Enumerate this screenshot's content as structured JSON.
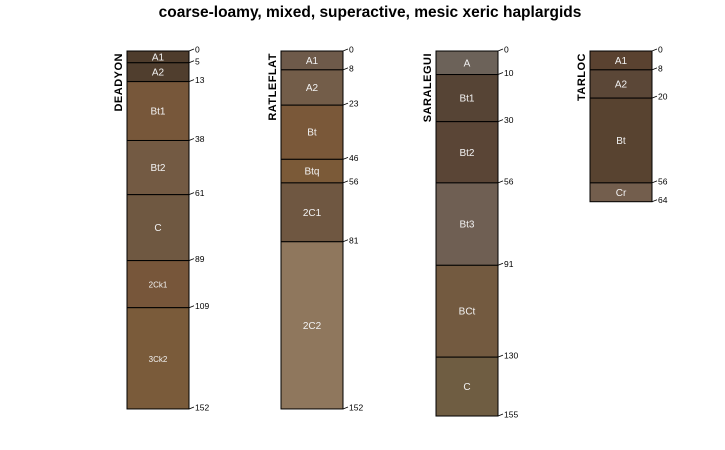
{
  "title": "coarse-loamy, mixed, superactive, mesic xeric haplargids",
  "profiles": [
    {
      "name": "DEADYON",
      "horizons": [
        {
          "name": "A1",
          "top": 0,
          "bottom": 5,
          "color": "#4e3c2c"
        },
        {
          "name": "A2",
          "top": 5,
          "bottom": 13,
          "color": "#503e2e"
        },
        {
          "name": "Bt1",
          "top": 13,
          "bottom": 38,
          "color": "#77573a"
        },
        {
          "name": "Bt2",
          "top": 38,
          "bottom": 61,
          "color": "#735a43"
        },
        {
          "name": "C",
          "top": 61,
          "bottom": 89,
          "color": "#6f5841"
        },
        {
          "name": "2Ck1",
          "top": 89,
          "bottom": 109,
          "color": "#77563a"
        },
        {
          "name": "3Ck2",
          "top": 109,
          "bottom": 152,
          "color": "#7a5b3a"
        }
      ],
      "depth_labels": [
        "0",
        "5",
        "13",
        "38",
        "61",
        "89",
        "109",
        "152"
      ]
    },
    {
      "name": "RATLEFLAT",
      "horizons": [
        {
          "name": "A1",
          "top": 0,
          "bottom": 8,
          "color": "#6e5a4a"
        },
        {
          "name": "A2",
          "top": 8,
          "bottom": 23,
          "color": "#735d49"
        },
        {
          "name": "Bt",
          "top": 23,
          "bottom": 46,
          "color": "#7a5839"
        },
        {
          "name": "Btq",
          "top": 46,
          "bottom": 56,
          "color": "#7b5a38"
        },
        {
          "name": "2C1",
          "top": 56,
          "bottom": 81,
          "color": "#6f5741"
        },
        {
          "name": "2C2",
          "top": 81,
          "bottom": 152,
          "color": "#8f775d"
        }
      ],
      "depth_labels": [
        "0",
        "8",
        "23",
        "46",
        "56",
        "81",
        "152"
      ]
    },
    {
      "name": "SARALEGUI",
      "horizons": [
        {
          "name": "A",
          "top": 0,
          "bottom": 10,
          "color": "#6c6259"
        },
        {
          "name": "Bt1",
          "top": 10,
          "bottom": 30,
          "color": "#564435"
        },
        {
          "name": "Bt2",
          "top": 30,
          "bottom": 56,
          "color": "#5a4536"
        },
        {
          "name": "Bt3",
          "top": 56,
          "bottom": 91,
          "color": "#6f5f53"
        },
        {
          "name": "BCt",
          "top": 91,
          "bottom": 130,
          "color": "#735a40"
        },
        {
          "name": "C",
          "top": 130,
          "bottom": 155,
          "color": "#6f5d42"
        }
      ],
      "depth_labels": [
        "0",
        "10",
        "30",
        "56",
        "91",
        "130",
        "155"
      ]
    },
    {
      "name": "TARLOC",
      "horizons": [
        {
          "name": "A1",
          "top": 0,
          "bottom": 8,
          "color": "#5a4230"
        },
        {
          "name": "A2",
          "top": 8,
          "bottom": 20,
          "color": "#5b4737"
        },
        {
          "name": "Bt",
          "top": 20,
          "bottom": 56,
          "color": "#584330"
        },
        {
          "name": "Cr",
          "top": 56,
          "bottom": 64,
          "color": "#735e4d"
        }
      ],
      "depth_labels": [
        "0",
        "8",
        "20",
        "56",
        "64"
      ]
    }
  ]
}
